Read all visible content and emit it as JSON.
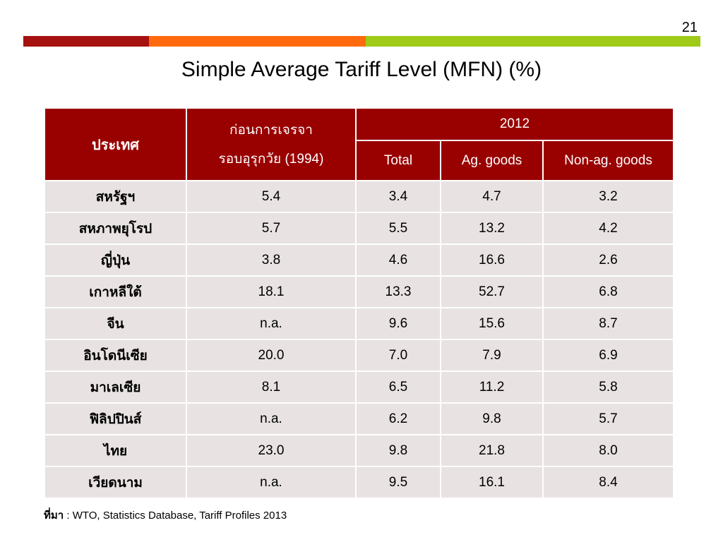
{
  "slide": {
    "page_number": "21",
    "title": "Simple Average Tariff Level (MFN) (%)",
    "colors": {
      "bar_red": "#a5120f",
      "bar_orange": "#ff6a0e",
      "bar_green": "#9fcb18",
      "header_bg": "#990000",
      "row_bg": "#e8e2e2"
    }
  },
  "table": {
    "header": {
      "country": "ประเทศ",
      "baseline_line1": "ก่อนการเจรจา",
      "baseline_line2_thai": "รอบอุรุกวัย",
      "baseline_line2_year": "(1994)",
      "year_group": "2012",
      "total": "Total",
      "ag": "Ag. goods",
      "nonag": "Non-ag. goods"
    },
    "rows": [
      {
        "country": "สหรัฐฯ",
        "baseline": "5.4",
        "total": "3.4",
        "ag": "4.7",
        "nonag": "3.2"
      },
      {
        "country": "สหภาพยุโรป",
        "baseline": "5.7",
        "total": "5.5",
        "ag": "13.2",
        "nonag": "4.2"
      },
      {
        "country": "ญี่ปุ่น",
        "baseline": "3.8",
        "total": "4.6",
        "ag": "16.6",
        "nonag": "2.6"
      },
      {
        "country": "เกาหลีใต้",
        "baseline": "18.1",
        "total": "13.3",
        "ag": "52.7",
        "nonag": "6.8"
      },
      {
        "country": "จีน",
        "baseline": "n.a.",
        "total": "9.6",
        "ag": "15.6",
        "nonag": "8.7"
      },
      {
        "country": "อินโดนีเซีย",
        "baseline": "20.0",
        "total": "7.0",
        "ag": "7.9",
        "nonag": "6.9"
      },
      {
        "country": "มาเลเซีย",
        "baseline": "8.1",
        "total": "6.5",
        "ag": "11.2",
        "nonag": "5.8"
      },
      {
        "country": "ฟิลิปปินส์",
        "baseline": "n.a.",
        "total": "6.2",
        "ag": "9.8",
        "nonag": "5.7"
      },
      {
        "country": "ไทย",
        "baseline": "23.0",
        "total": "9.8",
        "ag": "21.8",
        "nonag": "8.0"
      },
      {
        "country": "เวียดนาม",
        "baseline": "n.a.",
        "total": "9.5",
        "ag": "16.1",
        "nonag": "8.4"
      }
    ]
  },
  "source": {
    "label": "ที่มา",
    "text": ": WTO, Statistics Database, Tariff Profiles 2013"
  }
}
